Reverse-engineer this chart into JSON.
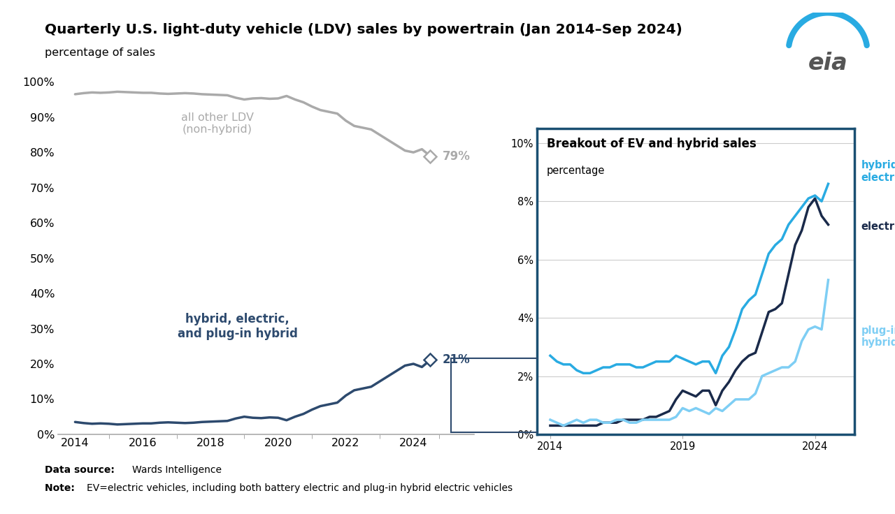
{
  "title": "Quarterly U.S. light-duty vehicle (LDV) sales by powertrain (Jan 2014–Sep 2024)",
  "subtitle": "percentage of sales",
  "bg_color": "#ffffff",
  "main_color": "#2d4a6e",
  "gray_color": "#aaaaaa",
  "hybrid_color": "#29abe2",
  "electric_color": "#1a2a4a",
  "plugin_color": "#7ecef4",
  "border_color": "#1a4f72",
  "inset_title": "Breakout of EV and hybrid sales",
  "inset_subtitle": "percentage",
  "data_source": "Wards Intelligence",
  "note": "EV=electric vehicles, including both battery electric and plug-in hybrid electric vehicles",
  "years_quarterly": [
    2014.0,
    2014.25,
    2014.5,
    2014.75,
    2015.0,
    2015.25,
    2015.5,
    2015.75,
    2016.0,
    2016.25,
    2016.5,
    2016.75,
    2017.0,
    2017.25,
    2017.5,
    2017.75,
    2018.0,
    2018.25,
    2018.5,
    2018.75,
    2019.0,
    2019.25,
    2019.5,
    2019.75,
    2020.0,
    2020.25,
    2020.5,
    2020.75,
    2021.0,
    2021.25,
    2021.5,
    2021.75,
    2022.0,
    2022.25,
    2022.5,
    2022.75,
    2023.0,
    2023.25,
    2023.5,
    2023.75,
    2024.0,
    2024.25,
    2024.5
  ],
  "hybrid_elec_plugin": [
    3.5,
    3.2,
    3.0,
    3.1,
    3.0,
    2.8,
    2.9,
    3.0,
    3.1,
    3.1,
    3.3,
    3.4,
    3.3,
    3.2,
    3.3,
    3.5,
    3.6,
    3.7,
    3.8,
    4.5,
    5.0,
    4.7,
    4.6,
    4.8,
    4.7,
    4.0,
    5.0,
    5.8,
    7.0,
    8.0,
    8.5,
    9.0,
    11.0,
    12.5,
    13.0,
    13.5,
    15.0,
    16.5,
    18.0,
    19.5,
    20.0,
    19.1,
    21.1
  ],
  "all_other_ldv": [
    96.5,
    96.8,
    97.0,
    96.9,
    97.0,
    97.2,
    97.1,
    97.0,
    96.9,
    96.9,
    96.7,
    96.6,
    96.7,
    96.8,
    96.7,
    96.5,
    96.4,
    96.3,
    96.2,
    95.5,
    95.0,
    95.3,
    95.4,
    95.2,
    95.3,
    96.0,
    95.0,
    94.2,
    93.0,
    92.0,
    91.5,
    91.0,
    89.0,
    87.5,
    87.0,
    86.5,
    85.0,
    83.5,
    82.0,
    80.5,
    80.0,
    80.9,
    78.9
  ],
  "hybrid_only": [
    2.7,
    2.5,
    2.4,
    2.4,
    2.2,
    2.1,
    2.1,
    2.2,
    2.3,
    2.3,
    2.4,
    2.4,
    2.4,
    2.3,
    2.3,
    2.4,
    2.5,
    2.5,
    2.5,
    2.7,
    2.6,
    2.5,
    2.4,
    2.5,
    2.5,
    2.1,
    2.7,
    3.0,
    3.6,
    4.3,
    4.6,
    4.8,
    5.5,
    6.2,
    6.5,
    6.7,
    7.2,
    7.5,
    7.8,
    8.1,
    8.2,
    8.0,
    8.6
  ],
  "electric_only": [
    0.3,
    0.3,
    0.3,
    0.3,
    0.3,
    0.3,
    0.3,
    0.3,
    0.4,
    0.4,
    0.4,
    0.5,
    0.5,
    0.5,
    0.5,
    0.6,
    0.6,
    0.7,
    0.8,
    1.2,
    1.5,
    1.4,
    1.3,
    1.5,
    1.5,
    1.0,
    1.5,
    1.8,
    2.2,
    2.5,
    2.7,
    2.8,
    3.5,
    4.2,
    4.3,
    4.5,
    5.5,
    6.5,
    7.0,
    7.8,
    8.1,
    7.5,
    7.2
  ],
  "plugin_only": [
    0.5,
    0.4,
    0.3,
    0.4,
    0.5,
    0.4,
    0.5,
    0.5,
    0.4,
    0.4,
    0.5,
    0.5,
    0.4,
    0.4,
    0.5,
    0.5,
    0.5,
    0.5,
    0.5,
    0.6,
    0.9,
    0.8,
    0.9,
    0.8,
    0.7,
    0.9,
    0.8,
    1.0,
    1.2,
    1.2,
    1.2,
    1.4,
    2.0,
    2.1,
    2.2,
    2.3,
    2.3,
    2.5,
    3.2,
    3.6,
    3.7,
    3.6,
    5.3
  ]
}
